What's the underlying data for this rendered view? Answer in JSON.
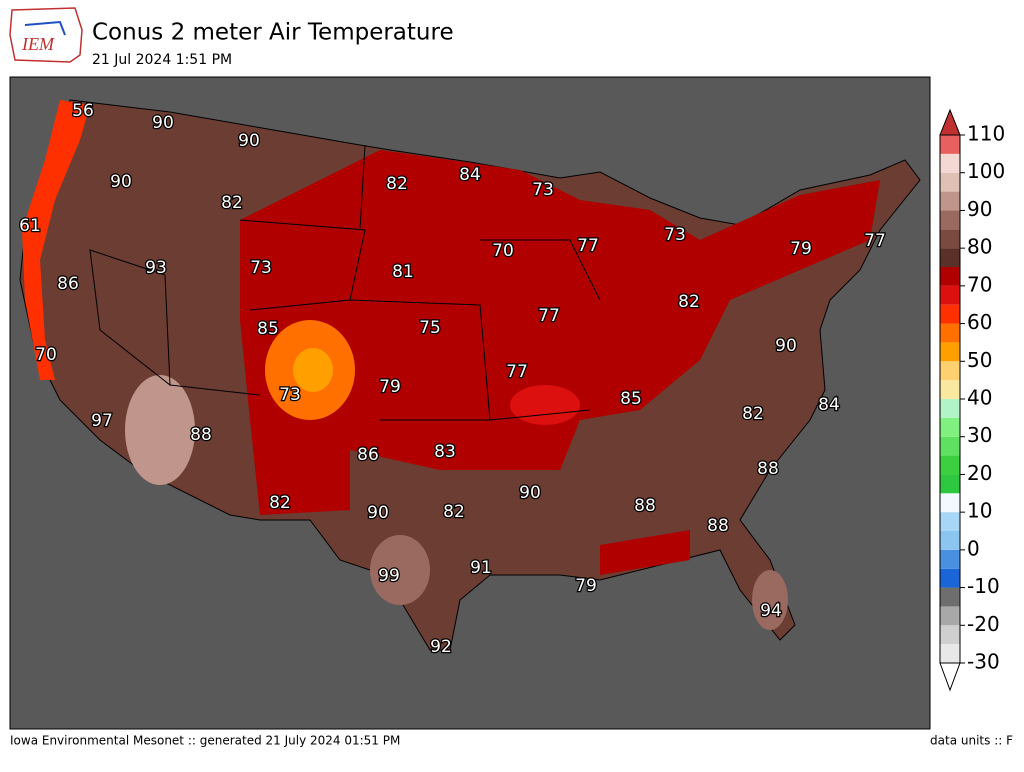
{
  "logo": "IEM",
  "title": "Conus 2 meter Air Temperature",
  "subtitle": "21 Jul 2024 1:51 PM",
  "footer_left": "Iowa Environmental Mesonet :: generated 21 July 2024 01:51 PM",
  "footer_right": "data units :: F",
  "map_labels": [
    56,
    90,
    90,
    90,
    82,
    82,
    84,
    73,
    61,
    93,
    73,
    70,
    77,
    73,
    79,
    77,
    86,
    81,
    85,
    75,
    77,
    82,
    70,
    90,
    79,
    77,
    73,
    85,
    84,
    97,
    88,
    82,
    86,
    83,
    88,
    90,
    82,
    90,
    82,
    88,
    88,
    99,
    91,
    79,
    94,
    92
  ],
  "colorbar": {
    "lim": [
      -30,
      110
    ],
    "ticks": [
      -30,
      -20,
      -10,
      0,
      10,
      20,
      30,
      40,
      50,
      60,
      70,
      80,
      90,
      100,
      110
    ],
    "step": 5,
    "colors": [
      "#e8e8e8",
      "#cfcfcf",
      "#a8a8a8",
      "#6e6e6e",
      "#1a66d8",
      "#4a90e0",
      "#8cc6f0",
      "#a8d6f6",
      "#f4f8ff",
      "#2ec840",
      "#3cd040",
      "#60e060",
      "#80f080",
      "#b0f4c8",
      "#f8e8a0",
      "#ffd070",
      "#ffa000",
      "#ff7000",
      "#ff3000",
      "#dd1010",
      "#b00000",
      "#5a3028",
      "#7a4a40",
      "#9a6a60",
      "#c0968c",
      "#e0c0b4",
      "#f4d8d4",
      "#e86060"
    ],
    "over_color": "#c03030",
    "under_color": "#ffffff"
  }
}
